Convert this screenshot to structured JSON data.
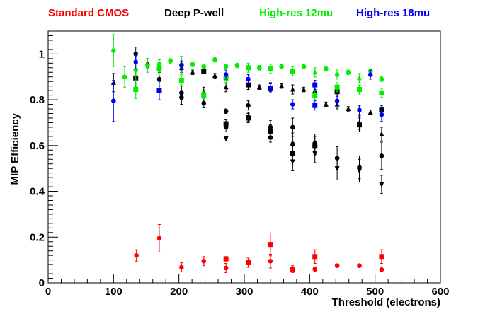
{
  "chart_data": {
    "type": "scatter",
    "xlabel": "Threshold (electrons)",
    "ylabel": "MIP Efficiency",
    "xlim": [
      0,
      600
    ],
    "ylim": [
      0,
      1.1
    ],
    "x_ticks": [
      0,
      100,
      200,
      300,
      400,
      500,
      600
    ],
    "x_tick_labels": [
      "0",
      "100",
      "200",
      "300",
      "400",
      "500",
      "600"
    ],
    "y_ticks": [
      0,
      0.2,
      0.4,
      0.6,
      0.8,
      1
    ],
    "y_tick_labels": [
      "0",
      "0.2",
      "0.4",
      "0.6",
      "0.8",
      "1"
    ],
    "series": [
      {
        "name": "Standard CMOS",
        "color": "#ff0000",
        "points": [
          {
            "x": 135,
            "y": 0.12,
            "err": 0.025,
            "marker": "circle"
          },
          {
            "x": 170,
            "y": 0.195,
            "err": 0.06,
            "marker": "circle"
          },
          {
            "x": 204,
            "y": 0.068,
            "err": 0.02,
            "marker": "circle"
          },
          {
            "x": 238,
            "y": 0.095,
            "err": 0.02,
            "marker": "circle"
          },
          {
            "x": 272,
            "y": 0.065,
            "err": 0.02,
            "marker": "circle"
          },
          {
            "x": 272,
            "y": 0.105,
            "err": 0.01,
            "marker": "square"
          },
          {
            "x": 306,
            "y": 0.088,
            "err": 0.02,
            "marker": "square"
          },
          {
            "x": 340,
            "y": 0.095,
            "err": 0.03,
            "marker": "circle"
          },
          {
            "x": 340,
            "y": 0.168,
            "err": 0.05,
            "marker": "square"
          },
          {
            "x": 374,
            "y": 0.06,
            "err": 0.015,
            "marker": "square"
          },
          {
            "x": 408,
            "y": 0.06,
            "err": 0.01,
            "marker": "circle"
          },
          {
            "x": 408,
            "y": 0.115,
            "err": 0.03,
            "marker": "square"
          },
          {
            "x": 442,
            "y": 0.075,
            "err": 0.005,
            "marker": "circle"
          },
          {
            "x": 476,
            "y": 0.075,
            "err": 0.005,
            "marker": "circle"
          },
          {
            "x": 510,
            "y": 0.058,
            "err": 0.005,
            "marker": "circle"
          },
          {
            "x": 510,
            "y": 0.115,
            "err": 0.03,
            "marker": "square"
          }
        ]
      },
      {
        "name": "Deep P-well",
        "color": "#000000",
        "points": [
          {
            "x": 100,
            "y": 0.875,
            "err": 0.04,
            "marker": "triangle-up"
          },
          {
            "x": 134,
            "y": 0.895,
            "err": 0.04,
            "marker": "square"
          },
          {
            "x": 134,
            "y": 1.0,
            "err": 0.03,
            "marker": "circle"
          },
          {
            "x": 152,
            "y": 0.96,
            "err": 0.02,
            "marker": "triangle-up"
          },
          {
            "x": 170,
            "y": 0.945,
            "err": 0.02,
            "marker": "triangle-up"
          },
          {
            "x": 170,
            "y": 0.89,
            "err": 0.03,
            "marker": "circle"
          },
          {
            "x": 204,
            "y": 0.94,
            "err": 0.02,
            "marker": "triangle-up"
          },
          {
            "x": 204,
            "y": 0.83,
            "err": 0.03,
            "marker": "circle"
          },
          {
            "x": 204,
            "y": 0.81,
            "err": 0.03,
            "marker": "circle"
          },
          {
            "x": 221,
            "y": 0.92,
            "err": 0.01,
            "marker": "triangle-up"
          },
          {
            "x": 238,
            "y": 0.925,
            "err": 0.01,
            "marker": "square"
          },
          {
            "x": 238,
            "y": 0.835,
            "err": 0.02,
            "marker": "triangle-up"
          },
          {
            "x": 238,
            "y": 0.785,
            "err": 0.02,
            "marker": "circle"
          },
          {
            "x": 255,
            "y": 0.905,
            "err": 0.01,
            "marker": "triangle-up"
          },
          {
            "x": 272,
            "y": 0.855,
            "err": 0.02,
            "marker": "triangle-up"
          },
          {
            "x": 272,
            "y": 0.75,
            "err": 0.01,
            "marker": "circle"
          },
          {
            "x": 272,
            "y": 0.695,
            "err": 0.02,
            "marker": "square"
          },
          {
            "x": 272,
            "y": 0.68,
            "err": 0.02,
            "marker": "circle"
          },
          {
            "x": 272,
            "y": 0.63,
            "err": 0.01,
            "marker": "triangle-down"
          },
          {
            "x": 306,
            "y": 0.865,
            "err": 0.02,
            "marker": "square"
          },
          {
            "x": 306,
            "y": 0.775,
            "err": 0.02,
            "marker": "circle"
          },
          {
            "x": 306,
            "y": 0.725,
            "err": 0.02,
            "marker": "circle"
          },
          {
            "x": 306,
            "y": 0.72,
            "err": 0.02,
            "marker": "square"
          },
          {
            "x": 323,
            "y": 0.855,
            "err": 0.01,
            "marker": "triangle-up"
          },
          {
            "x": 340,
            "y": 0.855,
            "err": 0.02,
            "marker": "triangle-up"
          },
          {
            "x": 340,
            "y": 0.68,
            "err": 0.03,
            "marker": "circle"
          },
          {
            "x": 340,
            "y": 0.66,
            "err": 0.03,
            "marker": "square"
          },
          {
            "x": 340,
            "y": 0.635,
            "err": 0.02,
            "marker": "circle"
          },
          {
            "x": 357,
            "y": 0.86,
            "err": 0.01,
            "marker": "triangle-up"
          },
          {
            "x": 374,
            "y": 0.845,
            "err": 0.02,
            "marker": "triangle-up"
          },
          {
            "x": 374,
            "y": 0.68,
            "err": 0.04,
            "marker": "circle"
          },
          {
            "x": 374,
            "y": 0.605,
            "err": 0.05,
            "marker": "circle"
          },
          {
            "x": 374,
            "y": 0.565,
            "err": 0.05,
            "marker": "square"
          },
          {
            "x": 374,
            "y": 0.53,
            "err": 0.04,
            "marker": "triangle-down"
          },
          {
            "x": 391,
            "y": 0.845,
            "err": 0.01,
            "marker": "triangle-up"
          },
          {
            "x": 408,
            "y": 0.84,
            "err": 0.02,
            "marker": "triangle-up"
          },
          {
            "x": 408,
            "y": 0.61,
            "err": 0.04,
            "marker": "circle"
          },
          {
            "x": 408,
            "y": 0.6,
            "err": 0.04,
            "marker": "square"
          },
          {
            "x": 408,
            "y": 0.565,
            "err": 0.04,
            "marker": "triangle-down"
          },
          {
            "x": 425,
            "y": 0.78,
            "err": 0.01,
            "marker": "triangle-up"
          },
          {
            "x": 442,
            "y": 0.835,
            "err": 0.02,
            "marker": "square"
          },
          {
            "x": 442,
            "y": 0.78,
            "err": 0.02,
            "marker": "triangle-up"
          },
          {
            "x": 442,
            "y": 0.545,
            "err": 0.05,
            "marker": "circle"
          },
          {
            "x": 442,
            "y": 0.5,
            "err": 0.05,
            "marker": "triangle-down"
          },
          {
            "x": 459,
            "y": 0.76,
            "err": 0.01,
            "marker": "triangle-up"
          },
          {
            "x": 476,
            "y": 0.7,
            "err": 0.03,
            "marker": "triangle-up"
          },
          {
            "x": 476,
            "y": 0.69,
            "err": 0.03,
            "marker": "square"
          },
          {
            "x": 476,
            "y": 0.505,
            "err": 0.05,
            "marker": "circle"
          },
          {
            "x": 476,
            "y": 0.49,
            "err": 0.05,
            "marker": "triangle-down"
          },
          {
            "x": 493,
            "y": 0.745,
            "err": 0.01,
            "marker": "triangle-up"
          },
          {
            "x": 510,
            "y": 0.755,
            "err": 0.02,
            "marker": "square"
          },
          {
            "x": 510,
            "y": 0.65,
            "err": 0.03,
            "marker": "triangle-up"
          },
          {
            "x": 510,
            "y": 0.555,
            "err": 0.06,
            "marker": "circle"
          },
          {
            "x": 510,
            "y": 0.43,
            "err": 0.04,
            "marker": "triangle-down"
          }
        ]
      },
      {
        "name": "High-res 12mu",
        "color": "#00ee00",
        "points": [
          {
            "x": 100,
            "y": 1.015,
            "err": 0.07,
            "marker": "circle"
          },
          {
            "x": 117,
            "y": 0.9,
            "err": 0.045,
            "marker": "circle"
          },
          {
            "x": 134,
            "y": 0.93,
            "err": 0.04,
            "marker": "circle"
          },
          {
            "x": 134,
            "y": 0.845,
            "err": 0.04,
            "marker": "square"
          },
          {
            "x": 152,
            "y": 0.95,
            "err": 0.03,
            "marker": "circle"
          },
          {
            "x": 170,
            "y": 0.935,
            "err": 0.03,
            "marker": "square"
          },
          {
            "x": 170,
            "y": 0.955,
            "err": 0.02,
            "marker": "circle"
          },
          {
            "x": 187,
            "y": 0.97,
            "err": 0.01,
            "marker": "circle"
          },
          {
            "x": 204,
            "y": 0.95,
            "err": 0.04,
            "marker": "circle"
          },
          {
            "x": 204,
            "y": 0.885,
            "err": 0.02,
            "marker": "square"
          },
          {
            "x": 221,
            "y": 0.955,
            "err": 0.01,
            "marker": "circle"
          },
          {
            "x": 238,
            "y": 0.945,
            "err": 0.01,
            "marker": "circle"
          },
          {
            "x": 238,
            "y": 0.82,
            "err": 0.015,
            "marker": "square"
          },
          {
            "x": 255,
            "y": 0.975,
            "err": 0.01,
            "marker": "circle"
          },
          {
            "x": 272,
            "y": 0.945,
            "err": 0.01,
            "marker": "circle"
          },
          {
            "x": 272,
            "y": 0.895,
            "err": 0.02,
            "marker": "square"
          },
          {
            "x": 289,
            "y": 0.95,
            "err": 0.01,
            "marker": "circle"
          },
          {
            "x": 306,
            "y": 0.94,
            "err": 0.02,
            "marker": "square"
          },
          {
            "x": 323,
            "y": 0.94,
            "err": 0.01,
            "marker": "circle"
          },
          {
            "x": 340,
            "y": 0.935,
            "err": 0.02,
            "marker": "square"
          },
          {
            "x": 357,
            "y": 0.945,
            "err": 0.01,
            "marker": "circle"
          },
          {
            "x": 374,
            "y": 0.925,
            "err": 0.02,
            "marker": "square"
          },
          {
            "x": 391,
            "y": 0.945,
            "err": 0.01,
            "marker": "circle"
          },
          {
            "x": 408,
            "y": 0.92,
            "err": 0.02,
            "marker": "triangle-up"
          },
          {
            "x": 408,
            "y": 0.82,
            "err": 0.02,
            "marker": "square"
          },
          {
            "x": 425,
            "y": 0.935,
            "err": 0.01,
            "marker": "circle"
          },
          {
            "x": 442,
            "y": 0.91,
            "err": 0.02,
            "marker": "circle"
          },
          {
            "x": 442,
            "y": 0.855,
            "err": 0.02,
            "marker": "square"
          },
          {
            "x": 459,
            "y": 0.92,
            "err": 0.01,
            "marker": "circle"
          },
          {
            "x": 476,
            "y": 0.895,
            "err": 0.02,
            "marker": "triangle-up"
          },
          {
            "x": 476,
            "y": 0.845,
            "err": 0.02,
            "marker": "square"
          },
          {
            "x": 493,
            "y": 0.925,
            "err": 0.01,
            "marker": "circle"
          },
          {
            "x": 510,
            "y": 0.89,
            "err": 0.01,
            "marker": "circle"
          },
          {
            "x": 510,
            "y": 0.83,
            "err": 0.02,
            "marker": "square"
          }
        ]
      },
      {
        "name": "High-res 18mu",
        "color": "#0000ee",
        "points": [
          {
            "x": 100,
            "y": 0.795,
            "err": 0.09,
            "marker": "circle"
          },
          {
            "x": 134,
            "y": 0.965,
            "err": 0.03,
            "marker": "circle"
          },
          {
            "x": 170,
            "y": 0.84,
            "err": 0.04,
            "marker": "square"
          },
          {
            "x": 204,
            "y": 0.95,
            "err": 0.02,
            "marker": "circle"
          },
          {
            "x": 272,
            "y": 0.91,
            "err": 0.02,
            "marker": "circle"
          },
          {
            "x": 306,
            "y": 0.89,
            "err": 0.02,
            "marker": "circle"
          },
          {
            "x": 340,
            "y": 0.85,
            "err": 0.02,
            "marker": "square"
          },
          {
            "x": 374,
            "y": 0.78,
            "err": 0.02,
            "marker": "circle"
          },
          {
            "x": 408,
            "y": 0.865,
            "err": 0.02,
            "marker": "square"
          },
          {
            "x": 408,
            "y": 0.775,
            "err": 0.02,
            "marker": "square"
          },
          {
            "x": 442,
            "y": 0.795,
            "err": 0.02,
            "marker": "circle"
          },
          {
            "x": 476,
            "y": 0.755,
            "err": 0.02,
            "marker": "circle"
          },
          {
            "x": 493,
            "y": 0.91,
            "err": 0.02,
            "marker": "circle"
          },
          {
            "x": 510,
            "y": 0.735,
            "err": 0.03,
            "marker": "circle"
          }
        ]
      }
    ]
  },
  "legend": [
    {
      "label": "Standard CMOS",
      "color": "#ff0000"
    },
    {
      "label": "Deep P-well",
      "color": "#000000"
    },
    {
      "label": "High-res 12mu",
      "color": "#00ee00"
    },
    {
      "label": "High-res 18mu",
      "color": "#0000ee"
    }
  ]
}
